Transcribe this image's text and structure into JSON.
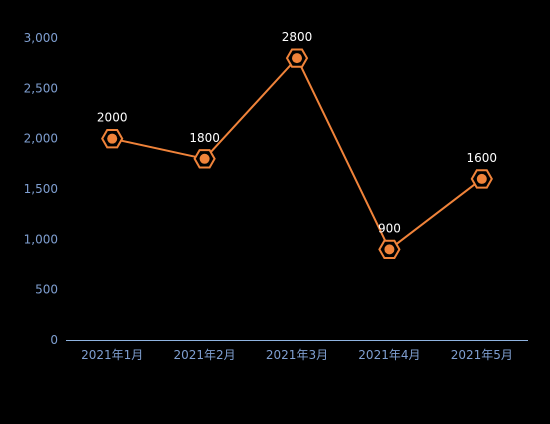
{
  "colors": {
    "background": "#000000",
    "axis_line": "#8fb3e0",
    "tick_label": "#7f9fd1",
    "series": "#f0833a",
    "data_label": "#ffffff"
  },
  "chart_data": {
    "type": "line",
    "categories": [
      "2021年1月",
      "2021年2月",
      "2021年3月",
      "2021年4月",
      "2021年5月"
    ],
    "series": [
      {
        "values": [
          2000,
          1800,
          2800,
          900,
          1600
        ],
        "marker": "hexagon"
      }
    ],
    "yticks": [
      "0",
      "500",
      "1,000",
      "1,500",
      "2,000",
      "2,500",
      "3,000"
    ],
    "ylim": [
      0,
      3000
    ],
    "grid": false,
    "legend": "none",
    "title": "",
    "xlabel": "",
    "ylabel": ""
  }
}
